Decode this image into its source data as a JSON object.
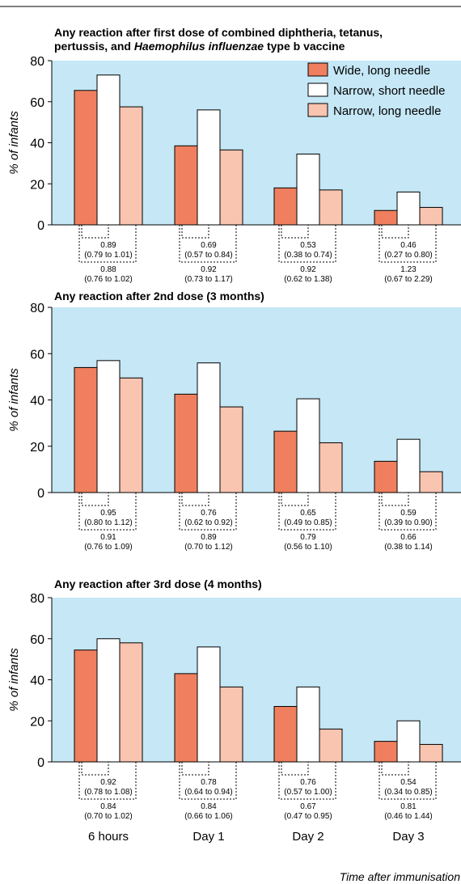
{
  "chart_data": [
    {
      "type": "bar",
      "title_lines": [
        [
          {
            "t": "Any reaction after first dose of combined diphtheria, tetanus,"
          }
        ],
        [
          {
            "t": "pertussis, and "
          },
          {
            "t": "Haemophilus influenzae",
            "i": true
          },
          {
            "t": " type b vaccine"
          }
        ]
      ],
      "ylabel": "% of infants",
      "ylim": [
        0,
        80
      ],
      "yticks": [
        0,
        20,
        40,
        60,
        80
      ],
      "categories": [
        "6 hours",
        "Day 1",
        "Day 2",
        "Day 3"
      ],
      "series": [
        {
          "name": "Wide, long needle",
          "values": [
            65.5,
            38.5,
            18,
            7
          ]
        },
        {
          "name": "Narrow, short needle",
          "values": [
            73,
            56,
            34.5,
            16
          ]
        },
        {
          "name": "Narrow, long needle",
          "values": [
            57.5,
            36.5,
            17,
            8.5
          ]
        }
      ],
      "legend": "top-right",
      "annotations": [
        {
          "inner": [
            "0.89",
            "(0.79 to 1.01)"
          ],
          "outer": [
            "0.88",
            "(0.76 to 1.02)"
          ]
        },
        {
          "inner": [
            "0.69",
            "(0.57 to 0.84)"
          ],
          "outer": [
            "0.92",
            "(0.73 to 1.17)"
          ]
        },
        {
          "inner": [
            "0.53",
            "(0.38 to 0.74)"
          ],
          "outer": [
            "0.92",
            "(0.62 to 1.38)"
          ]
        },
        {
          "inner": [
            "0.46",
            "(0.27 to 0.80)"
          ],
          "outer": [
            "1.23",
            "(0.67 to 2.29)"
          ]
        }
      ]
    },
    {
      "type": "bar",
      "title_lines": [
        [
          {
            "t": "Any reaction after 2nd dose (3 months)"
          }
        ]
      ],
      "ylabel": "% of infants",
      "ylim": [
        0,
        80
      ],
      "yticks": [
        0,
        20,
        40,
        60,
        80
      ],
      "categories": [
        "6 hours",
        "Day 1",
        "Day 2",
        "Day 3"
      ],
      "series": [
        {
          "name": "Wide, long needle",
          "values": [
            54,
            42.5,
            26.5,
            13.5
          ]
        },
        {
          "name": "Narrow, short needle",
          "values": [
            57,
            56,
            40.5,
            23
          ]
        },
        {
          "name": "Narrow, long needle",
          "values": [
            49.5,
            37,
            21.5,
            9
          ]
        }
      ],
      "annotations": [
        {
          "inner": [
            "0.95",
            "(0.80 to 1.12)"
          ],
          "outer": [
            "0.91",
            "(0.76 to 1.09)"
          ]
        },
        {
          "inner": [
            "0.76",
            "(0.62 to 0.92)"
          ],
          "outer": [
            "0.89",
            "(0.70 to 1.12)"
          ]
        },
        {
          "inner": [
            "0.65",
            "(0.49 to 0.85)"
          ],
          "outer": [
            "0.79",
            "(0.56 to 1.10)"
          ]
        },
        {
          "inner": [
            "0.59",
            "(0.39 to 0.90)"
          ],
          "outer": [
            "0.66",
            "(0.38 to 1.14)"
          ]
        }
      ]
    },
    {
      "type": "bar",
      "title_lines": [
        [
          {
            "t": "Any reaction after 3rd dose (4 months)"
          }
        ]
      ],
      "ylabel": "% of infants",
      "ylim": [
        0,
        80
      ],
      "yticks": [
        0,
        20,
        40,
        60,
        80
      ],
      "categories": [
        "6 hours",
        "Day 1",
        "Day 2",
        "Day 3"
      ],
      "series": [
        {
          "name": "Wide, long needle",
          "values": [
            54.5,
            43,
            27,
            10
          ]
        },
        {
          "name": "Narrow, short needle",
          "values": [
            60,
            56,
            36.5,
            20
          ]
        },
        {
          "name": "Narrow, long needle",
          "values": [
            58,
            36.5,
            16,
            8.5
          ]
        }
      ],
      "annotations": [
        {
          "inner": [
            "0.92",
            "(0.78 to 1.08)"
          ],
          "outer": [
            "0.84",
            "(0.70 to 1.02)"
          ]
        },
        {
          "inner": [
            "0.78",
            "(0.64 to 0.94)"
          ],
          "outer": [
            "0.84",
            "(0.66 to 1.06)"
          ]
        },
        {
          "inner": [
            "0.76",
            "(0.57 to 1.00)"
          ],
          "outer": [
            "0.67",
            "(0.47 to 0.95)"
          ]
        },
        {
          "inner": [
            "0.54",
            "(0.34 to 0.85)"
          ],
          "outer": [
            "0.81",
            "(0.46 to 1.44)"
          ]
        }
      ]
    }
  ],
  "x_categories": [
    "6 hours",
    "Day 1",
    "Day 2",
    "Day 3"
  ],
  "xlabel": "Time after immunisation",
  "colors": {
    "background": "#c5e7f6",
    "series": [
      "#ef7f5e",
      "#ffffff",
      "#f9c4b0"
    ]
  }
}
